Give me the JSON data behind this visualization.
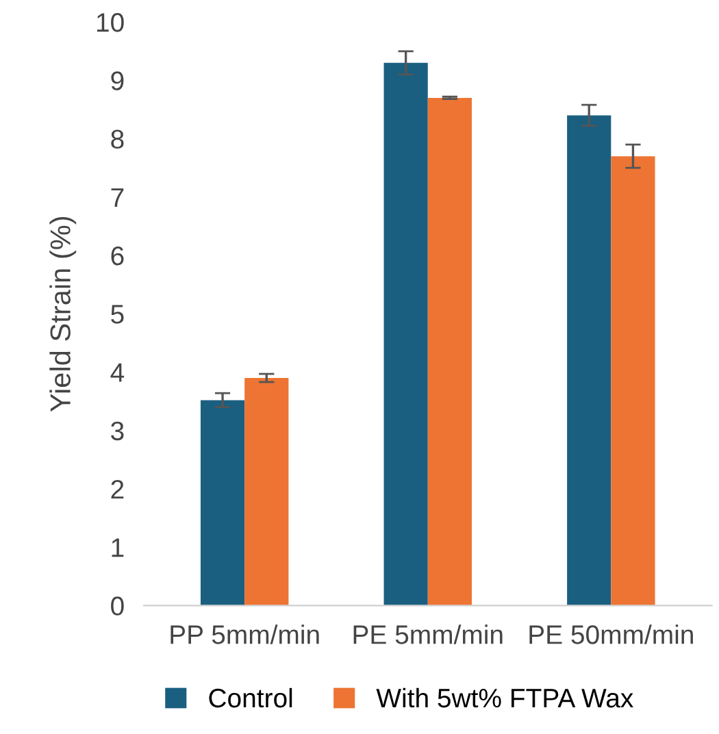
{
  "chart_data": {
    "type": "bar",
    "ylabel": "Yield Strain (%)",
    "categories": [
      "PP 5mm/min",
      "PE 5mm/min",
      "PE 50mm/min"
    ],
    "series": [
      {
        "name": "Control",
        "color": "#1a5f80",
        "values": [
          3.52,
          9.3,
          8.4
        ],
        "errors": [
          0.12,
          0.2,
          0.18
        ]
      },
      {
        "name": "With 5wt% FTPA Wax",
        "color": "#ed7433",
        "values": [
          3.9,
          8.7,
          7.7
        ],
        "errors": [
          0.07,
          0.02,
          0.2
        ]
      }
    ],
    "ylim": [
      0,
      10
    ],
    "yticks": [
      0,
      1,
      2,
      3,
      4,
      5,
      6,
      7,
      8,
      9,
      10
    ],
    "grid": false,
    "legend": "bottom"
  }
}
